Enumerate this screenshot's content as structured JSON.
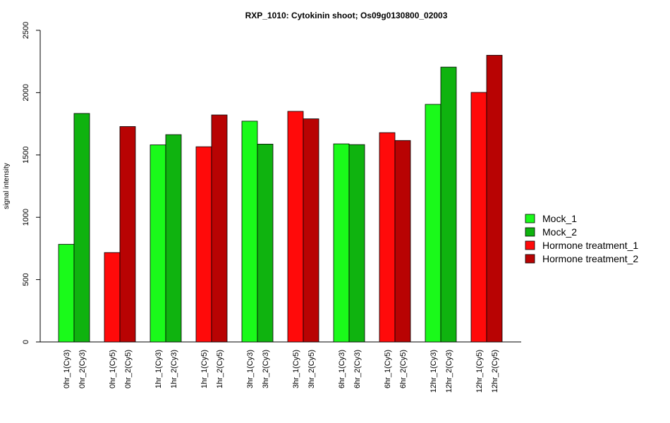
{
  "chart_data": {
    "type": "bar",
    "title": "RXP_1010: Cytokinin shoot; Os09g0130800_02003",
    "xlabel": "",
    "ylabel": "signal intensity",
    "ylim": [
      0,
      2500
    ],
    "yticks": [
      0,
      500,
      1000,
      1500,
      2000,
      2500
    ],
    "grid": false,
    "legend_position": "right",
    "legend": [
      {
        "label": "Mock_1",
        "color": "#1afa1a"
      },
      {
        "label": "Mock_2",
        "color": "#0fb30f"
      },
      {
        "label": "Hormone treatment_1",
        "color": "#ff0a0a"
      },
      {
        "label": "Hormone treatment_2",
        "color": "#b80303"
      }
    ],
    "bars": [
      {
        "label": "0hr_1(Cy3)",
        "value": 783,
        "series": 0
      },
      {
        "label": "0hr_2(Cy3)",
        "value": 1833,
        "series": 1
      },
      {
        "label": "0hr_1(Cy5)",
        "value": 717,
        "series": 2
      },
      {
        "label": "0hr_2(Cy5)",
        "value": 1728,
        "series": 3
      },
      {
        "label": "1hr_1(Cy3)",
        "value": 1581,
        "series": 0
      },
      {
        "label": "1hr_2(Cy3)",
        "value": 1663,
        "series": 1
      },
      {
        "label": "1hr_1(Cy5)",
        "value": 1566,
        "series": 2
      },
      {
        "label": "1hr_2(Cy5)",
        "value": 1821,
        "series": 3
      },
      {
        "label": "3hr_1(Cy3)",
        "value": 1771,
        "series": 0
      },
      {
        "label": "3hr_2(Cy3)",
        "value": 1587,
        "series": 1
      },
      {
        "label": "3hr_1(Cy5)",
        "value": 1850,
        "series": 2
      },
      {
        "label": "3hr_2(Cy5)",
        "value": 1790,
        "series": 3
      },
      {
        "label": "6hr_1(Cy3)",
        "value": 1589,
        "series": 0
      },
      {
        "label": "6hr_2(Cy3)",
        "value": 1583,
        "series": 1
      },
      {
        "label": "6hr_1(Cy5)",
        "value": 1679,
        "series": 2
      },
      {
        "label": "6hr_2(Cy5)",
        "value": 1616,
        "series": 3
      },
      {
        "label": "12hr_1(Cy3)",
        "value": 1906,
        "series": 0
      },
      {
        "label": "12hr_2(Cy3)",
        "value": 2205,
        "series": 1
      },
      {
        "label": "12hr_1(Cy5)",
        "value": 2002,
        "series": 2
      },
      {
        "label": "12hr_2(Cy5)",
        "value": 2300,
        "series": 3
      }
    ]
  }
}
